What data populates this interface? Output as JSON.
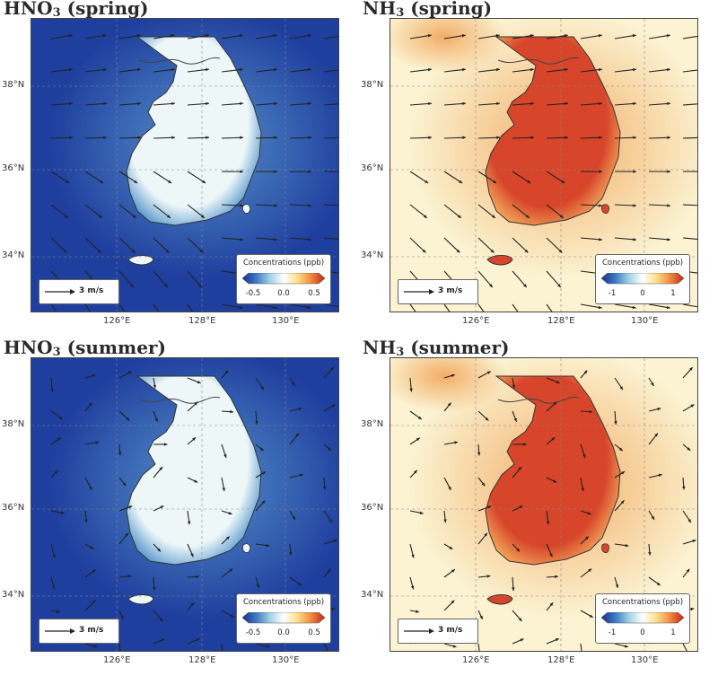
{
  "panels": [
    {
      "title_main": "HNO",
      "title_sub": "3",
      "title_rest": " (spring)",
      "scheme": "blue",
      "season": "spring",
      "legend_title": "Concentrations (ppb)",
      "ticks": [
        "-0.5",
        "0.0",
        "0.5"
      ],
      "wind_label": "3 m/s"
    },
    {
      "title_main": "NH",
      "title_sub": "3",
      "title_rest": " (spring)",
      "scheme": "red",
      "season": "spring",
      "legend_title": "Concentrations (ppb)",
      "ticks": [
        "-1",
        "0",
        "1"
      ],
      "wind_label": "3 m/s"
    },
    {
      "title_main": "HNO",
      "title_sub": "3",
      "title_rest": " (summer)",
      "scheme": "blue",
      "season": "summer",
      "legend_title": "Concentrations (ppb)",
      "ticks": [
        "-0.5",
        "0.0",
        "0.5"
      ],
      "wind_label": "3 m/s"
    },
    {
      "title_main": "NH",
      "title_sub": "3",
      "title_rest": " (summer)",
      "scheme": "red",
      "season": "summer",
      "legend_title": "Concentrations (ppb)",
      "ticks": [
        "-1",
        "0",
        "1"
      ],
      "wind_label": "3 m/s"
    }
  ],
  "lat_labels": [
    "38°N",
    "36°N",
    "34°N"
  ],
  "lon_labels": [
    "126°E",
    "128°E",
    "130°E"
  ],
  "colors": {
    "blue_low": "#1f3f9e",
    "blue_mid": "#5d9bcf",
    "blue_high": "#eef7f8",
    "red_low": "#fbf3d2",
    "red_mid": "#f2a55a",
    "red_high": "#d7452a"
  }
}
